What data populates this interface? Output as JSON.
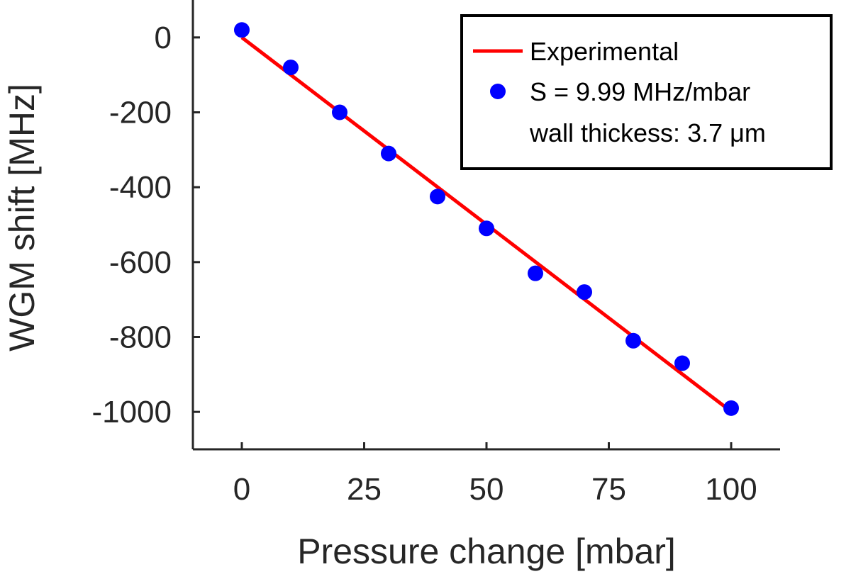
{
  "chart_data": {
    "type": "scatter",
    "xlabel": "Pressure change [mbar]",
    "ylabel": "WGM shift [MHz]",
    "xlim": [
      -10,
      110
    ],
    "ylim": [
      -1100,
      100
    ],
    "xticks": [
      0,
      25,
      50,
      75,
      100
    ],
    "yticks": [
      0,
      -200,
      -400,
      -600,
      -800,
      -1000
    ],
    "grid": false,
    "legend_position": "top-right",
    "series": [
      {
        "name": "Experimental",
        "kind": "line",
        "color": "#ff0000",
        "x": [
          0,
          100
        ],
        "y": [
          0,
          -999
        ]
      },
      {
        "name": "S = 9.99 MHz/mbar",
        "kind": "scatter",
        "color": "#0000ff",
        "x": [
          0,
          10,
          20,
          30,
          40,
          50,
          60,
          70,
          80,
          90,
          100
        ],
        "y": [
          20,
          -80,
          -200,
          -310,
          -425,
          -510,
          -630,
          -680,
          -810,
          -870,
          -990
        ]
      }
    ],
    "legend": {
      "entries": [
        "Experimental",
        "S = 9.99 MHz/mbar"
      ],
      "extra_text": "wall thickess: 3.7 μm"
    }
  }
}
